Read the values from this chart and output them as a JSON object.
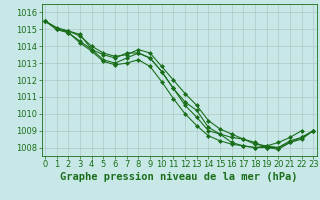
{
  "title": "Graphe pression niveau de la mer (hPa)",
  "x_hours": [
    0,
    1,
    2,
    3,
    4,
    5,
    6,
    7,
    8,
    9,
    10,
    11,
    12,
    13,
    14,
    15,
    16,
    17,
    18,
    19,
    20,
    21,
    22,
    23
  ],
  "line1": [
    1015.5,
    1015.1,
    1014.9,
    1014.7,
    1013.8,
    1013.5,
    1013.3,
    1013.6,
    1013.6,
    1013.3,
    1012.5,
    1011.5,
    1010.7,
    1010.2,
    1009.2,
    1008.8,
    1008.3,
    1008.1,
    1008.0,
    1008.1,
    1008.3,
    1008.6,
    1009.0,
    null
  ],
  "line2": [
    1015.5,
    1015.0,
    1014.8,
    1014.3,
    1013.8,
    1013.2,
    1013.0,
    1013.3,
    1013.6,
    1013.3,
    1012.5,
    1011.5,
    1010.5,
    1009.8,
    1009.0,
    1008.8,
    1008.6,
    1008.5,
    1008.2,
    1008.1,
    1008.0,
    1008.4,
    1008.6,
    1009.0
  ],
  "line3": [
    1015.5,
    1015.0,
    1014.9,
    1014.6,
    1014.0,
    1013.6,
    1013.4,
    1013.5,
    1013.8,
    1013.6,
    1012.8,
    1012.0,
    1011.2,
    1010.5,
    1009.6,
    1009.1,
    1008.8,
    1008.5,
    1008.3,
    1008.0,
    1007.9,
    1008.3,
    1008.6,
    1009.0
  ],
  "line4": [
    1015.5,
    1015.0,
    1014.8,
    1014.2,
    1013.7,
    1013.1,
    1012.9,
    1013.0,
    1013.2,
    1012.8,
    1011.9,
    1010.9,
    1010.0,
    1009.3,
    1008.7,
    1008.4,
    1008.2,
    1008.1,
    1008.0,
    1008.0,
    1008.0,
    1008.3,
    1008.5,
    1009.0
  ],
  "ylim": [
    1007.5,
    1016.5
  ],
  "xlim": [
    -0.3,
    23.3
  ],
  "yticks": [
    1008,
    1009,
    1010,
    1011,
    1012,
    1013,
    1014,
    1015,
    1016
  ],
  "xticks": [
    0,
    1,
    2,
    3,
    4,
    5,
    6,
    7,
    8,
    9,
    10,
    11,
    12,
    13,
    14,
    15,
    16,
    17,
    18,
    19,
    20,
    21,
    22,
    23
  ],
  "line_color": "#1a6e1a",
  "bg_color": "#c8e8e8",
  "grid_color": "#b0c8c8",
  "marker": "D",
  "marker_size": 2.0,
  "line_width": 0.8,
  "title_fontsize": 7.5,
  "tick_fontsize": 6.0
}
